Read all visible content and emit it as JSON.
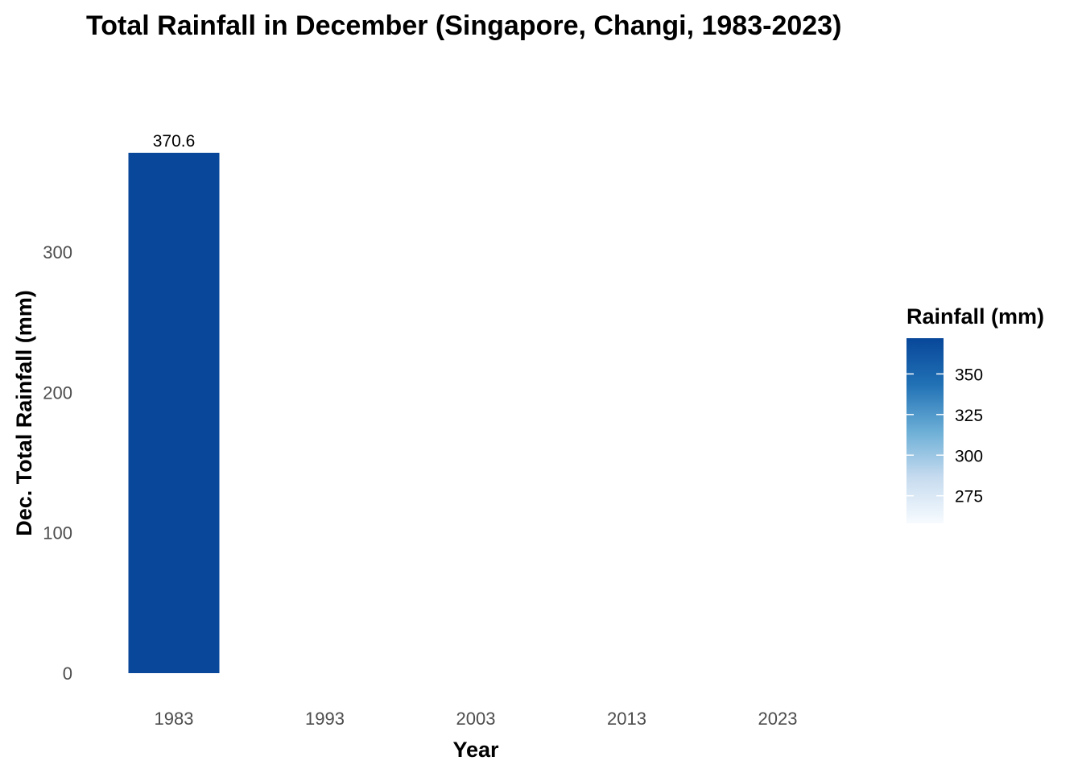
{
  "chart_data": {
    "type": "bar",
    "title": "Total Rainfall in December (Singapore, Changi, 1983-2023)",
    "xlabel": "Year",
    "ylabel": "Dec. Total Rainfall (mm)",
    "x_ticks": [
      "1983",
      "1993",
      "2003",
      "2013",
      "2023"
    ],
    "y_ticks": [
      0,
      100,
      200,
      300
    ],
    "ylim": [
      0,
      370.6
    ],
    "grid": false,
    "categories": [
      "1983"
    ],
    "values": [
      370.6
    ],
    "data_labels": [
      "370.6"
    ],
    "legend": {
      "title": "Rainfall (mm)",
      "type": "colorbar",
      "placement": "right",
      "ticks": [
        350,
        325,
        300,
        275
      ],
      "range": [
        258,
        372
      ],
      "color_low": "#f7fbff",
      "color_high": "#08479a"
    }
  }
}
